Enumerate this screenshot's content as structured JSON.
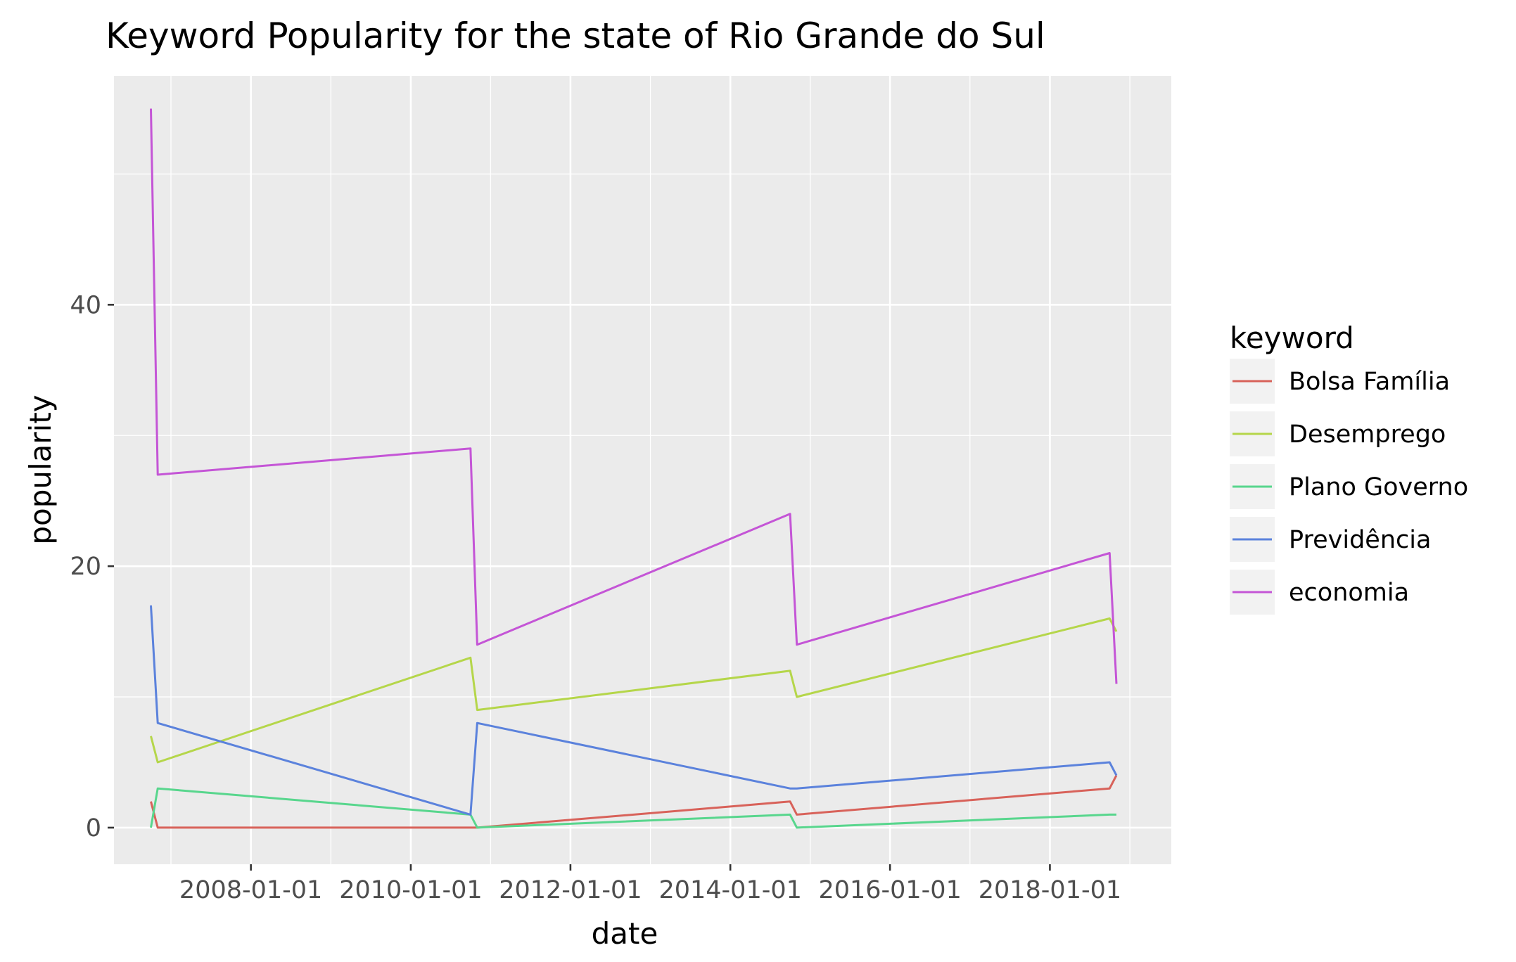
{
  "chart_data": {
    "type": "line",
    "title": "Keyword Popularity for the state of Rio Grande do Sul",
    "xlabel": "date",
    "ylabel": "popularity",
    "x_is_date": true,
    "xlim": [
      "2006-04-15",
      "2019-07-10"
    ],
    "ylim": [
      -2.8,
      57.5
    ],
    "xticks": [
      "2008-01-01",
      "2010-01-01",
      "2012-01-01",
      "2014-01-01",
      "2016-01-01",
      "2018-01-01"
    ],
    "yticks": [
      0,
      20,
      40
    ],
    "grid": true,
    "legend": {
      "title": "keyword",
      "position": "right"
    },
    "series": [
      {
        "name": "Bolsa Família",
        "color": "#D8625A",
        "points": [
          [
            "2006-10-01",
            2
          ],
          [
            "2006-11-01",
            0
          ],
          [
            "2010-10-01",
            0
          ],
          [
            "2010-11-01",
            0
          ],
          [
            "2014-10-01",
            2
          ],
          [
            "2014-11-01",
            1
          ],
          [
            "2018-10-01",
            3
          ],
          [
            "2018-11-01",
            4
          ]
        ]
      },
      {
        "name": "Desemprego",
        "color": "#B5D64A",
        "points": [
          [
            "2006-10-01",
            7
          ],
          [
            "2006-11-01",
            5
          ],
          [
            "2010-10-01",
            13
          ],
          [
            "2010-11-01",
            9
          ],
          [
            "2014-10-01",
            12
          ],
          [
            "2014-11-01",
            10
          ],
          [
            "2018-10-01",
            16
          ],
          [
            "2018-11-01",
            15
          ]
        ]
      },
      {
        "name": "Plano Governo",
        "color": "#58D68D",
        "points": [
          [
            "2006-10-01",
            0
          ],
          [
            "2006-11-01",
            3
          ],
          [
            "2010-10-01",
            1
          ],
          [
            "2010-11-01",
            0
          ],
          [
            "2014-10-01",
            1
          ],
          [
            "2014-11-01",
            0
          ],
          [
            "2018-10-01",
            1
          ],
          [
            "2018-11-01",
            1
          ]
        ]
      },
      {
        "name": "Previdência",
        "color": "#5B82DC",
        "points": [
          [
            "2006-10-01",
            17
          ],
          [
            "2006-11-01",
            8
          ],
          [
            "2010-10-01",
            1
          ],
          [
            "2010-11-01",
            8
          ],
          [
            "2014-10-01",
            3
          ],
          [
            "2014-11-01",
            3
          ],
          [
            "2018-10-01",
            5
          ],
          [
            "2018-11-01",
            4
          ]
        ]
      },
      {
        "name": "economia",
        "color": "#C455D6",
        "points": [
          [
            "2006-10-01",
            55
          ],
          [
            "2006-11-01",
            27
          ],
          [
            "2010-10-01",
            29
          ],
          [
            "2010-11-01",
            14
          ],
          [
            "2014-10-01",
            24
          ],
          [
            "2014-11-01",
            14
          ],
          [
            "2018-10-01",
            21
          ],
          [
            "2018-11-01",
            11
          ]
        ]
      }
    ]
  }
}
